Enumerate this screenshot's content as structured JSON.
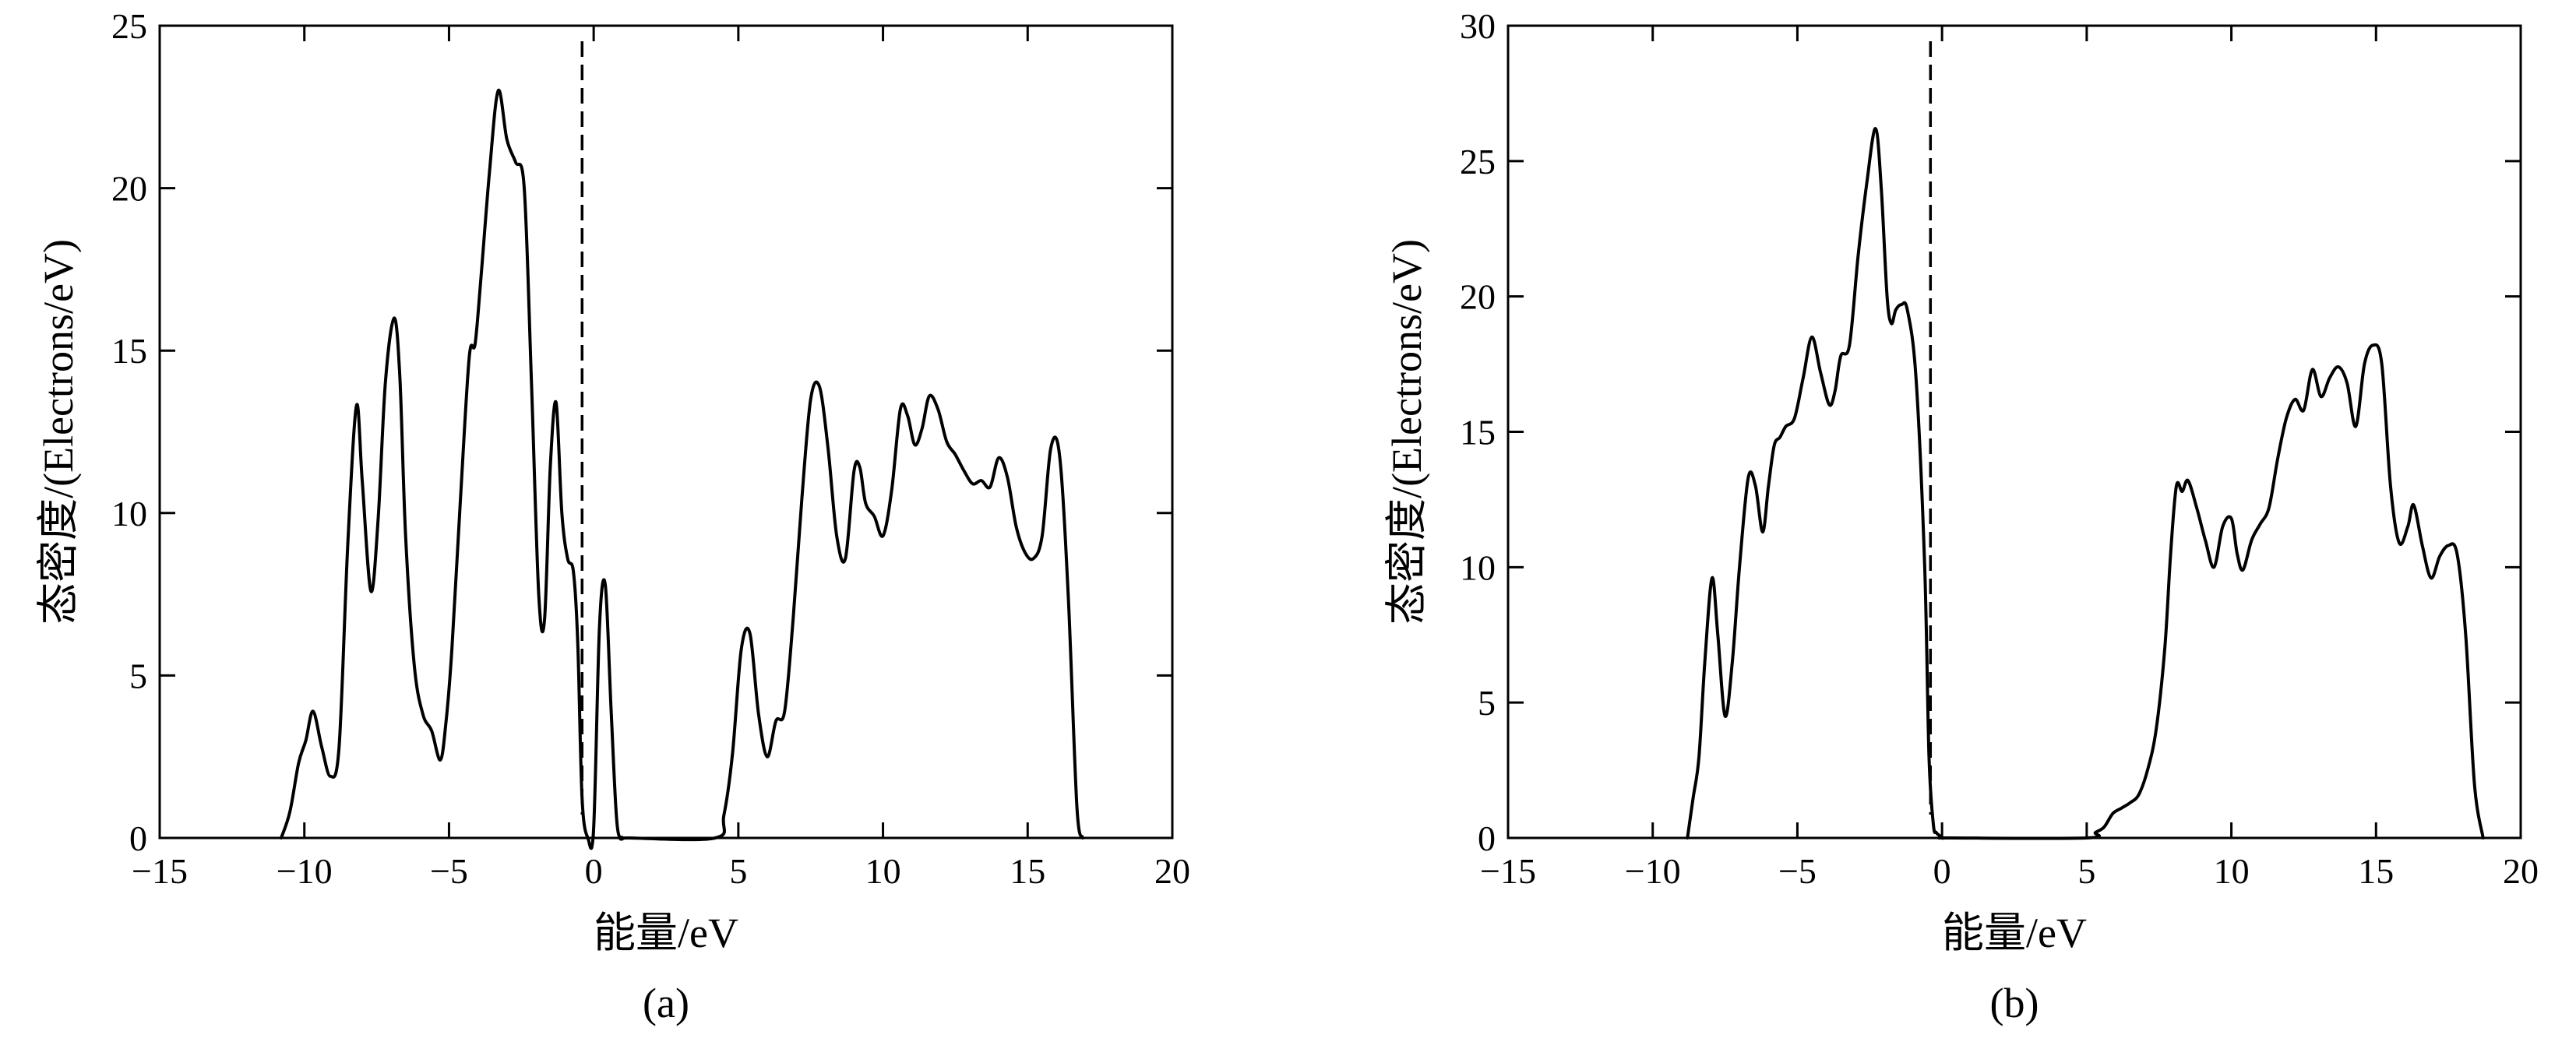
{
  "chart_data": [
    {
      "type": "line",
      "panel_label": "(a)",
      "xlabel": "能量/eV",
      "ylabel": "态密度/(Electrons/eV)",
      "xlim": [
        -15,
        20
      ],
      "ylim": [
        0,
        25
      ],
      "xticks": [
        -15,
        -10,
        -5,
        0,
        5,
        10,
        15,
        20
      ],
      "yticks": [
        0,
        5,
        10,
        15,
        20,
        25
      ],
      "xtick_labels": [
        "−15",
        "−10",
        "−5",
        "0",
        "5",
        "10",
        "15",
        "20"
      ],
      "ytick_labels": [
        "0",
        "5",
        "10",
        "15",
        "20",
        "25"
      ],
      "fermi_level": -0.4,
      "grid": false,
      "series": [
        {
          "x": [
            -10.8,
            -10.5,
            -10.2,
            -9.95,
            -9.7,
            -9.4,
            -9.1,
            -8.8,
            -8.5,
            -8.2,
            -8.0,
            -7.7,
            -7.45,
            -7.2,
            -6.9,
            -6.7,
            -6.5,
            -6.2,
            -5.9,
            -5.6,
            -5.3,
            -5.1,
            -4.9,
            -4.6,
            -4.3,
            -4.1,
            -3.9,
            -3.6,
            -3.3,
            -3.0,
            -2.7,
            -2.4,
            -2.15,
            -1.9,
            -1.7,
            -1.5,
            -1.3,
            -1.1,
            -0.9,
            -0.7,
            -0.55,
            -0.4,
            -0.2,
            0.0,
            0.2,
            0.4,
            0.6,
            0.8,
            1.0,
            1.2,
            4.2,
            4.5,
            4.8,
            5.1,
            5.4,
            5.7,
            6.0,
            6.3,
            6.6,
            6.9,
            7.2,
            7.5,
            7.8,
            8.1,
            8.4,
            8.7,
            9.0,
            9.2,
            9.4,
            9.7,
            10.0,
            10.3,
            10.6,
            10.85,
            11.1,
            11.35,
            11.6,
            11.9,
            12.2,
            12.5,
            12.8,
            13.1,
            13.4,
            13.7,
            14.0,
            14.3,
            14.6,
            14.9,
            15.2,
            15.5,
            15.8,
            16.1,
            16.4,
            16.7,
            16.9
          ],
          "values": [
            0.0,
            0.8,
            2.3,
            3.0,
            3.9,
            2.8,
            1.9,
            2.8,
            9.0,
            13.3,
            11.0,
            7.6,
            9.8,
            14.0,
            16.0,
            14.2,
            9.3,
            5.3,
            3.8,
            3.3,
            2.4,
            3.6,
            5.8,
            10.5,
            14.8,
            15.2,
            17.2,
            20.5,
            23.0,
            21.5,
            20.8,
            20.0,
            14.0,
            7.5,
            6.7,
            11.4,
            13.4,
            10.0,
            8.6,
            8.2,
            6.0,
            1.2,
            0.0,
            0.3,
            6.5,
            7.8,
            4.0,
            0.5,
            0.0,
            0.0,
            0.0,
            0.7,
            2.6,
            5.8,
            6.3,
            3.8,
            2.5,
            3.6,
            3.9,
            6.8,
            10.5,
            13.5,
            13.9,
            12.0,
            9.3,
            8.6,
            11.3,
            11.4,
            10.3,
            9.9,
            9.3,
            10.7,
            13.2,
            13.0,
            12.1,
            12.6,
            13.6,
            13.2,
            12.2,
            11.8,
            11.3,
            10.9,
            11.0,
            10.8,
            11.7,
            11.1,
            9.6,
            8.8,
            8.6,
            9.3,
            12.0,
            11.8,
            7.5,
            1.0,
            0.0
          ]
        }
      ]
    },
    {
      "type": "line",
      "panel_label": "(b)",
      "xlabel": "能量/eV",
      "ylabel": "态密度/(Electrons/eV)",
      "xlim": [
        -15,
        20
      ],
      "ylim": [
        0,
        30
      ],
      "xticks": [
        -15,
        -10,
        -5,
        0,
        5,
        10,
        15,
        20
      ],
      "yticks": [
        0,
        5,
        10,
        15,
        20,
        25,
        30
      ],
      "xtick_labels": [
        "−15",
        "−10",
        "−5",
        "0",
        "5",
        "10",
        "15",
        "20"
      ],
      "ytick_labels": [
        "0",
        "5",
        "10",
        "15",
        "20",
        "25",
        "30"
      ],
      "fermi_level": -0.4,
      "grid": false,
      "series": [
        {
          "x": [
            -8.8,
            -8.6,
            -8.4,
            -8.2,
            -7.95,
            -7.75,
            -7.5,
            -7.25,
            -7.0,
            -6.7,
            -6.45,
            -6.2,
            -6.0,
            -5.8,
            -5.6,
            -5.4,
            -5.1,
            -4.8,
            -4.5,
            -4.2,
            -3.9,
            -3.7,
            -3.5,
            -3.2,
            -2.9,
            -2.6,
            -2.3,
            -2.1,
            -1.9,
            -1.75,
            -1.6,
            -1.4,
            -1.2,
            -0.9,
            -0.6,
            -0.45,
            -0.3,
            -0.2,
            -0.1,
            0.0,
            0.1,
            0.3,
            5.0,
            5.3,
            5.6,
            5.9,
            6.2,
            6.5,
            6.8,
            7.1,
            7.4,
            7.7,
            7.9,
            8.1,
            8.3,
            8.5,
            8.8,
            9.1,
            9.4,
            9.7,
            10.0,
            10.2,
            10.4,
            10.7,
            11.0,
            11.3,
            11.6,
            11.9,
            12.2,
            12.5,
            12.8,
            13.1,
            13.4,
            13.7,
            14.0,
            14.3,
            14.6,
            14.9,
            15.2,
            15.5,
            15.8,
            16.1,
            16.3,
            16.6,
            16.9,
            17.2,
            17.5,
            17.8,
            18.1,
            18.4,
            18.7
          ],
          "values": [
            0.0,
            1.5,
            3.0,
            6.5,
            9.6,
            7.5,
            4.5,
            6.5,
            10.0,
            13.3,
            13.0,
            11.3,
            13.0,
            14.5,
            14.8,
            15.2,
            15.5,
            17.0,
            18.5,
            17.2,
            16.0,
            16.5,
            17.8,
            18.2,
            21.5,
            24.2,
            26.2,
            24.0,
            20.0,
            19.0,
            19.5,
            19.7,
            19.5,
            17.0,
            10.0,
            3.0,
            0.5,
            0.2,
            0.1,
            0.0,
            0.0,
            0.0,
            0.0,
            0.2,
            0.4,
            0.9,
            1.1,
            1.3,
            1.6,
            2.5,
            4.0,
            7.0,
            10.5,
            13.0,
            12.8,
            13.2,
            12.2,
            11.0,
            10.0,
            11.5,
            11.8,
            10.5,
            9.9,
            11.0,
            11.6,
            12.2,
            14.0,
            15.5,
            16.2,
            15.8,
            17.3,
            16.3,
            17.0,
            17.4,
            16.8,
            15.2,
            17.5,
            18.2,
            17.5,
            13.0,
            10.9,
            11.5,
            12.3,
            10.8,
            9.6,
            10.4,
            10.8,
            10.5,
            7.5,
            2.0,
            0.0
          ]
        }
      ]
    }
  ]
}
